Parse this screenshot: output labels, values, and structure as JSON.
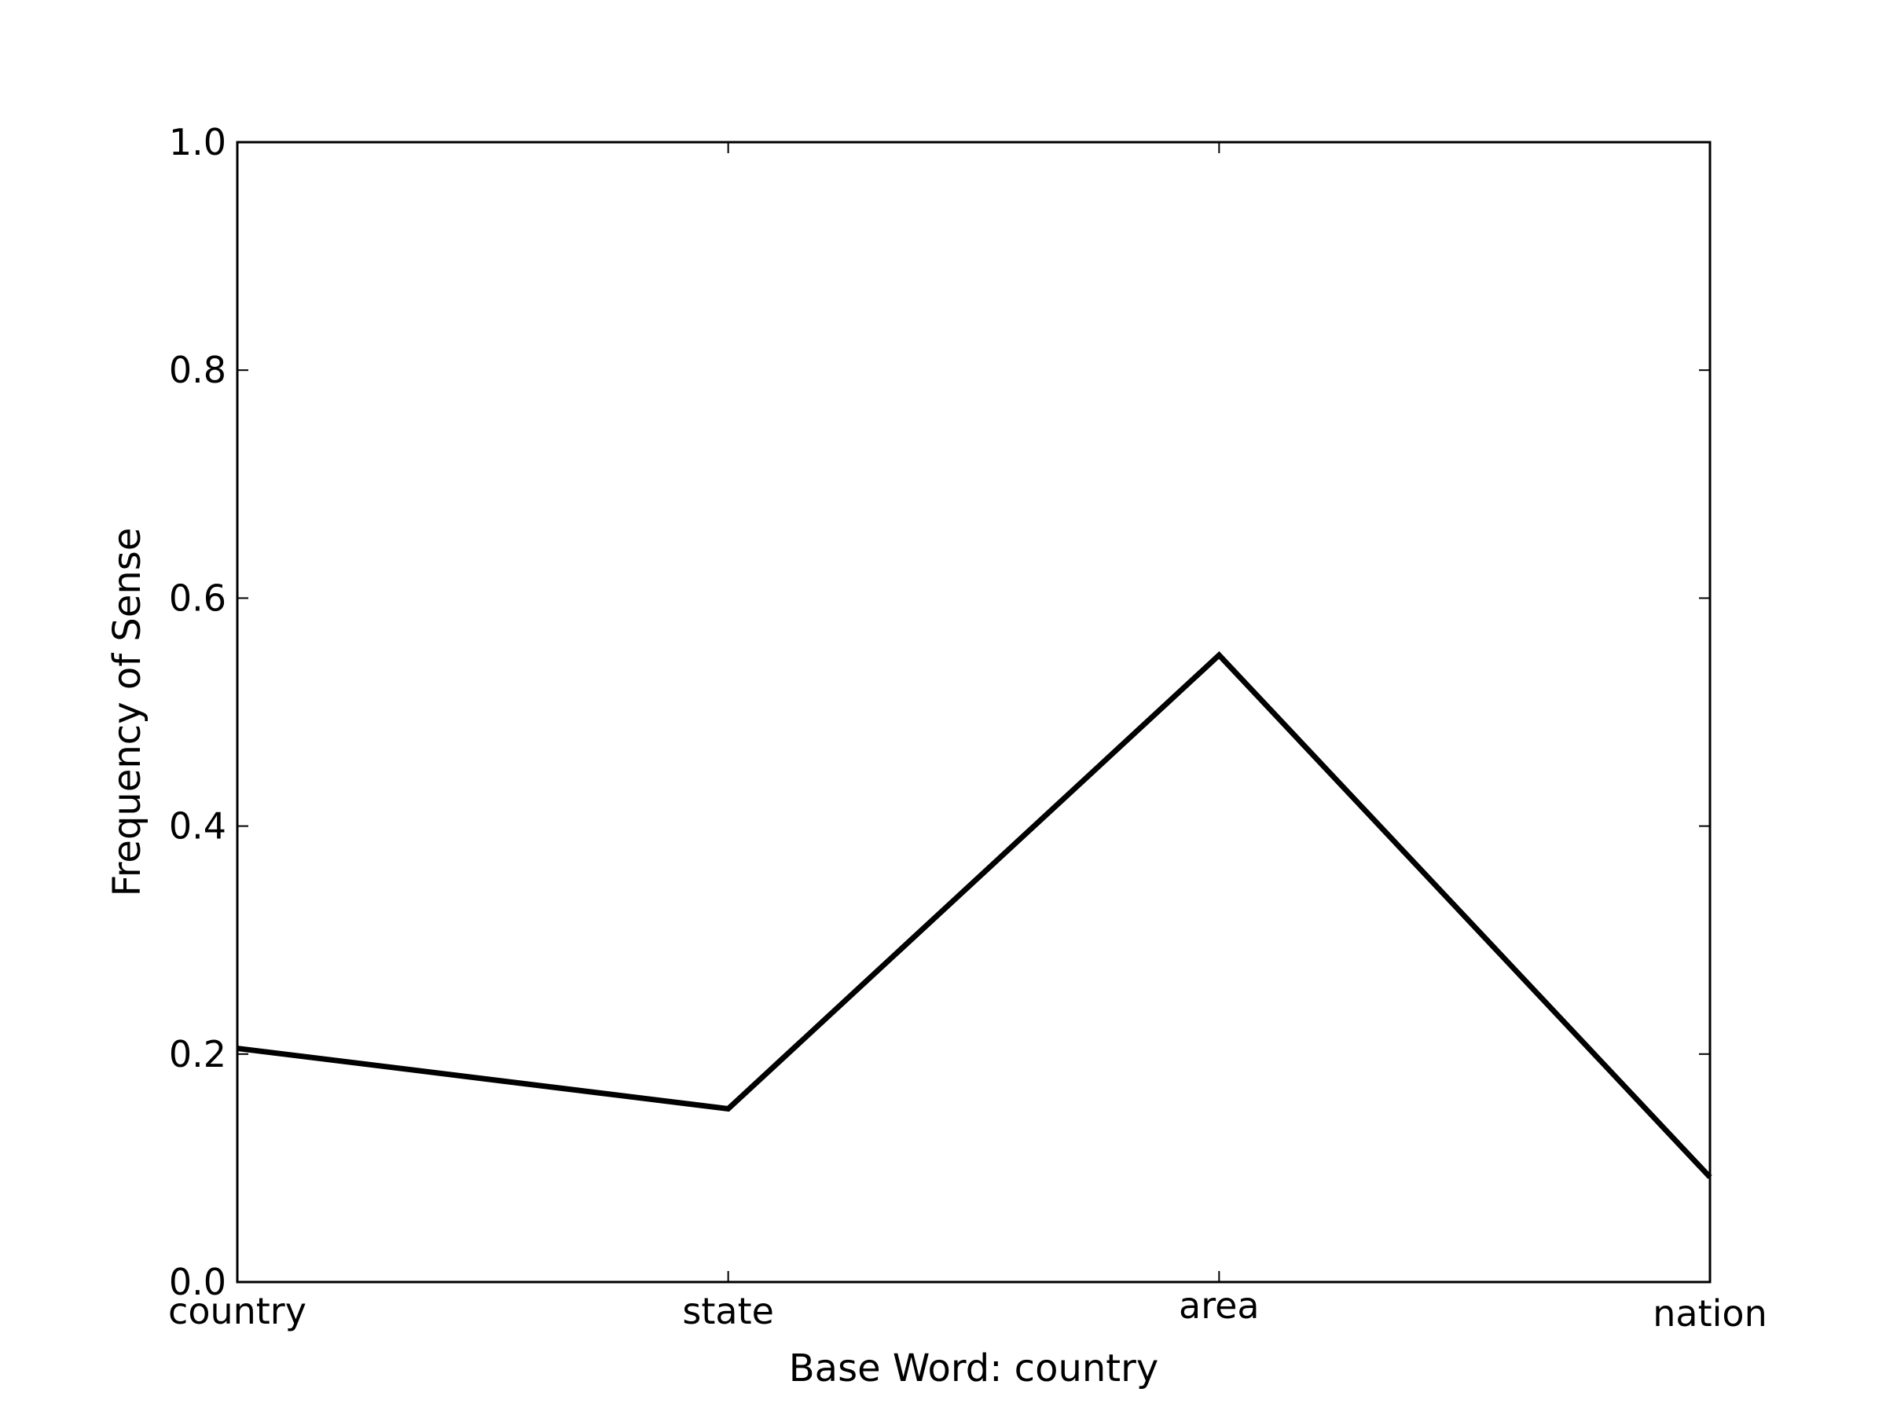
{
  "chart_data": {
    "type": "line",
    "title": "",
    "xlabel": "Base Word: country",
    "ylabel": "Frequency of Sense",
    "categories": [
      "country",
      "state",
      "area",
      "nation"
    ],
    "series": [
      {
        "values": [
          0.205,
          0.152,
          0.55,
          0.092
        ]
      }
    ],
    "ylim": [
      0.0,
      1.0
    ],
    "yticks": [
      "0.0",
      "0.2",
      "0.4",
      "0.6",
      "0.8",
      "1.0"
    ],
    "grid": false,
    "legend": "none",
    "line_color": "#000000"
  }
}
